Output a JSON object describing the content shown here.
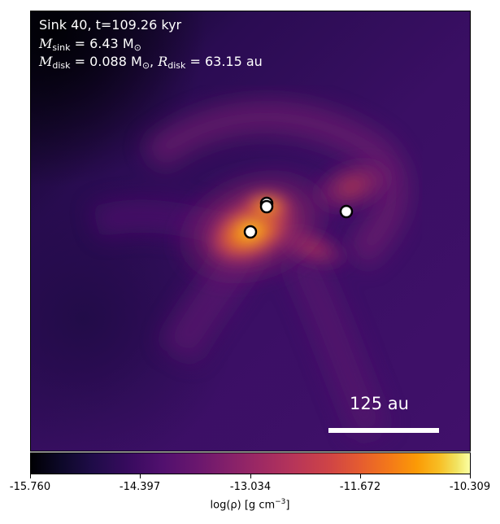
{
  "panel": {
    "line1": "Sink 40, t=109.26 kyr",
    "m_sink_symbol": "M",
    "m_sink_sub": "sink",
    "m_sink_value": " = 6.43 M",
    "m_sink_unit_sub": "⊙",
    "m_disk_symbol": "M",
    "m_disk_sub": "disk",
    "m_disk_value": " = 0.088 M",
    "m_disk_unit_sub": "⊙",
    "r_disk_symbol": "R",
    "r_disk_sub": "disk",
    "r_disk_value": " = 63.15 au",
    "scale_label": "125 au"
  },
  "colorbar": {
    "ticks": [
      "-15.760",
      "-14.397",
      "-13.034",
      "-11.672",
      "-10.309"
    ],
    "label_prefix": "log(",
    "label_rho": "ρ",
    "label_suffix": ") [g cm",
    "label_exp": "−3",
    "label_close": "]",
    "colormap": "inferno"
  },
  "sinks_count": 4
}
